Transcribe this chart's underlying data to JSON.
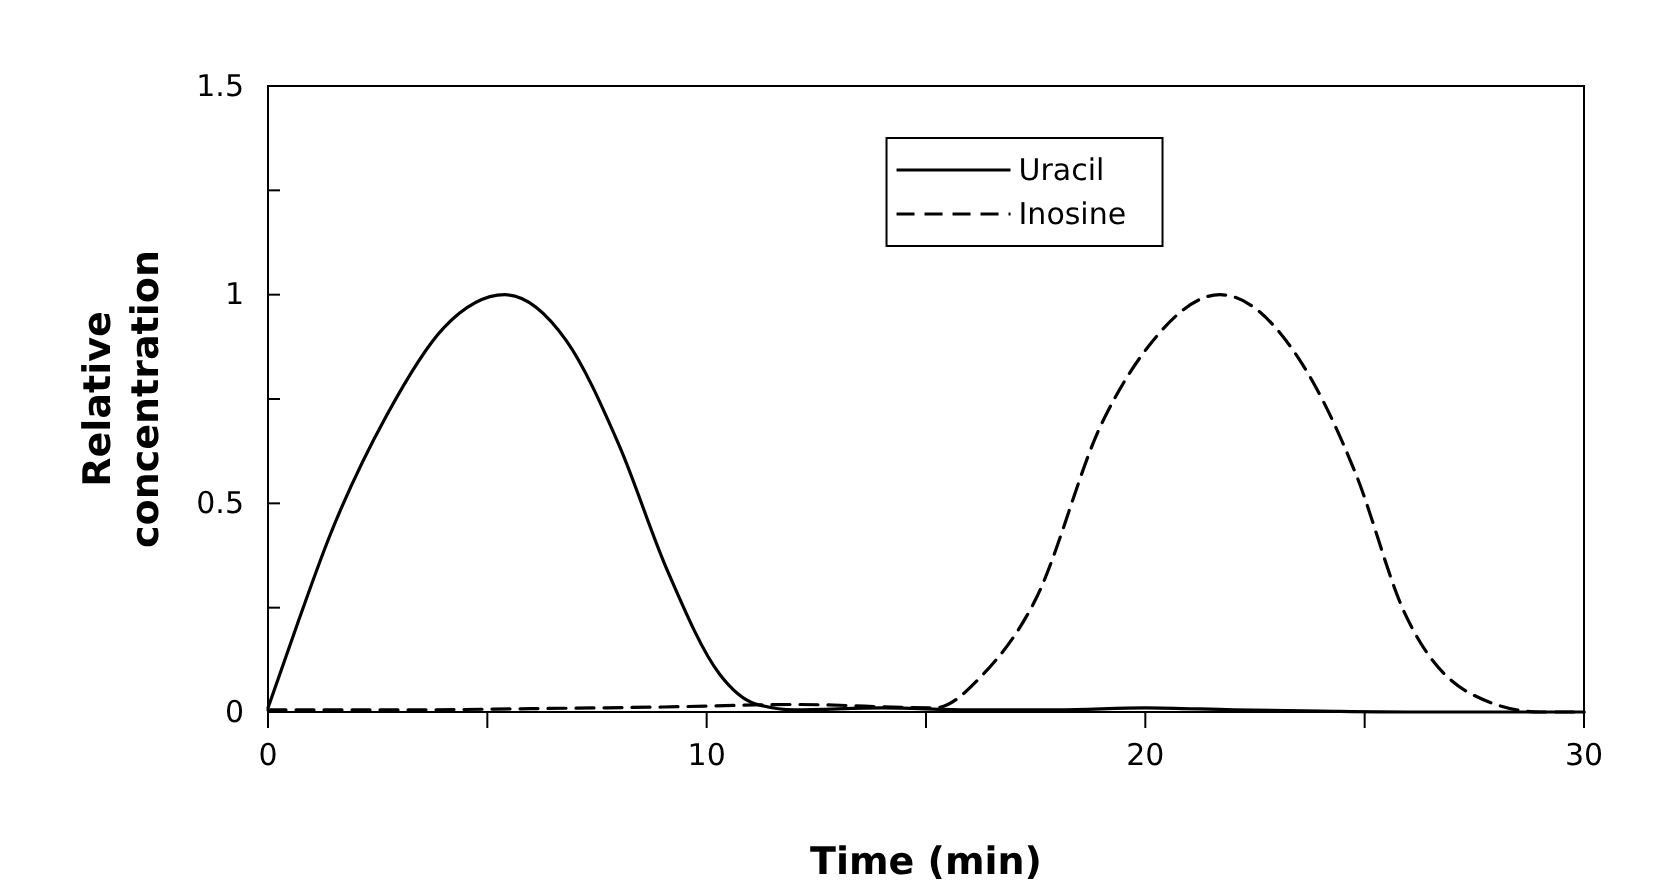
{
  "chart_data": {
    "type": "line",
    "xlabel": "Time (min)",
    "ylabel": "Relative\nconcentration",
    "xlim": [
      0,
      30
    ],
    "ylim": [
      0,
      1.5
    ],
    "xticks": [
      0,
      {
        "value": 5,
        "label": null
      },
      10,
      {
        "value": 15,
        "label": null
      },
      20,
      {
        "value": 25,
        "label": null
      },
      30
    ],
    "yticks": [
      0,
      {
        "value": 0.25,
        "label": null
      },
      0.5,
      {
        "value": 0.75,
        "label": null
      },
      1,
      {
        "value": 1.25,
        "label": null
      },
      1.5
    ],
    "grid": false,
    "legend": "top",
    "marker": "none",
    "series": [
      {
        "name": "Uracil",
        "color": "#000000",
        "line_style": "solid",
        "x": [
          0,
          0.7,
          1.4,
          2.7,
          4.0,
          5.4,
          6.8,
          8.0,
          9.1,
          10.3,
          11.1,
          12,
          14,
          16,
          18,
          20,
          22,
          24,
          26,
          28,
          30
        ],
        "values": [
          0.01,
          0.22,
          0.42,
          0.71,
          0.92,
          1.0,
          0.89,
          0.64,
          0.34,
          0.09,
          0.02,
          0.005,
          0.01,
          0.005,
          0.005,
          0.01,
          0.005,
          0.002,
          0,
          0,
          0
        ]
      },
      {
        "name": "Inosine",
        "color": "#000000",
        "line_style": "dashed",
        "x": [
          0,
          3,
          6,
          9,
          12,
          15.2,
          16.3,
          17.5,
          19.0,
          20.1,
          21.7,
          23.6,
          24.8,
          25.9,
          27.4,
          29.0,
          30
        ],
        "values": [
          0.005,
          0.005,
          0.008,
          0.012,
          0.018,
          0.01,
          0.09,
          0.27,
          0.69,
          0.88,
          1.0,
          0.83,
          0.57,
          0.24,
          0.045,
          0,
          0
        ]
      }
    ]
  }
}
